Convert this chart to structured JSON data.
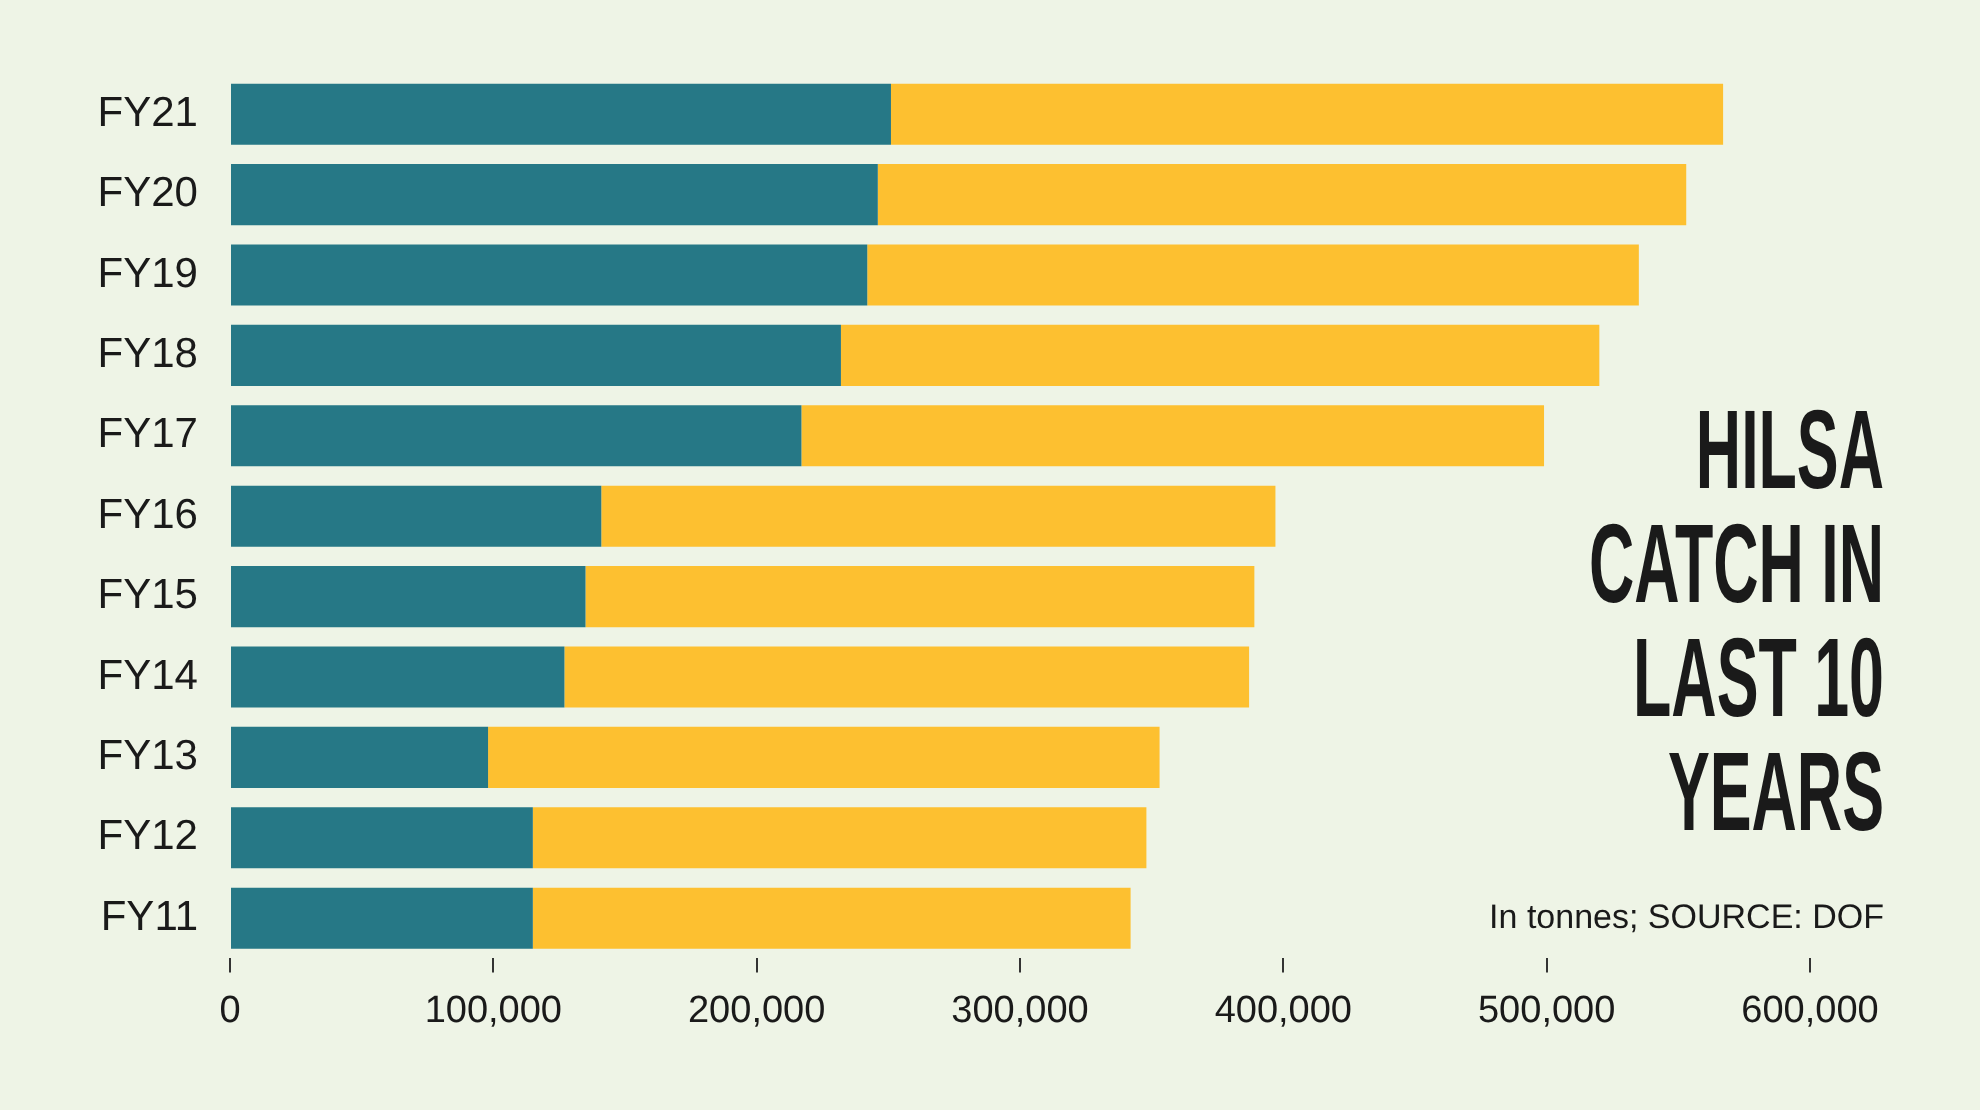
{
  "chart_data": {
    "type": "bar",
    "orientation": "horizontal",
    "stacked": true,
    "title": "HILSA CATCH IN LAST 10 YEARS",
    "annotations": [
      "In tonnes; SOURCE: DOF"
    ],
    "categories": [
      "FY21",
      "FY20",
      "FY19",
      "FY18",
      "FY17",
      "FY16",
      "FY15",
      "FY14",
      "FY13",
      "FY12",
      "FY11"
    ],
    "series": [
      {
        "color": "#267886",
        "values": [
          251000,
          246000,
          242000,
          232000,
          217000,
          141000,
          135000,
          127000,
          98000,
          115000,
          115000
        ]
      },
      {
        "color": "#fdc030",
        "values": [
          316000,
          307000,
          293000,
          288000,
          282000,
          256000,
          254000,
          260000,
          255000,
          233000,
          227000
        ]
      }
    ],
    "xlim": [
      0,
      600000
    ],
    "xticks": [
      {
        "value": 0,
        "label": "0"
      },
      {
        "value": 100000,
        "label": "100,000"
      },
      {
        "value": 200000,
        "label": "200,000"
      },
      {
        "value": 300000,
        "label": "300,000"
      },
      {
        "value": 400000,
        "label": "400,000"
      },
      {
        "value": 500000,
        "label": "500,000"
      },
      {
        "value": 600000,
        "label": "600,000"
      }
    ],
    "grid": false,
    "legend": false
  }
}
